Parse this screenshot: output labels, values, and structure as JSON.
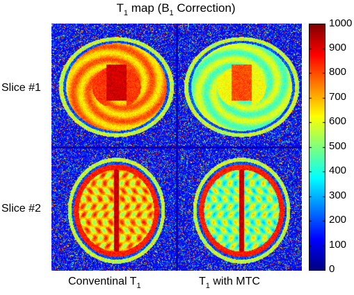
{
  "figure": {
    "title_main": "T",
    "title_sub1": "1",
    "title_mid": " map (B",
    "title_sub2": "1",
    "title_end": " Correction)"
  },
  "rows": [
    {
      "label": "Slice #1"
    },
    {
      "label": "Slice #2"
    }
  ],
  "columns": [
    {
      "label_main": "Conventinal T",
      "label_sub": "1",
      "label_end": ""
    },
    {
      "label_main": "T",
      "label_sub": "1",
      "label_end": " with MTC"
    }
  ],
  "colorbar": {
    "colormap": "jet",
    "range": [
      0,
      1000
    ],
    "ticks": [
      "1000",
      "900",
      "800",
      "700",
      "600",
      "500",
      "400",
      "300",
      "200",
      "100",
      "0"
    ]
  }
}
